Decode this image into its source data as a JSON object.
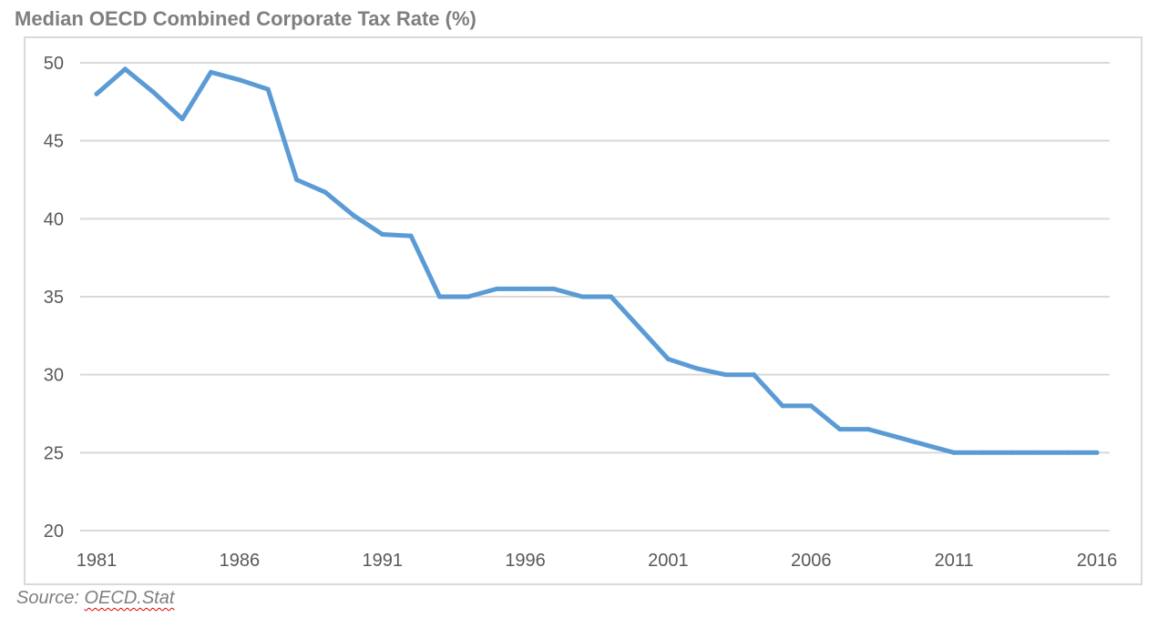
{
  "source": {
    "prefix": "Source: ",
    "name": "OECD.Stat"
  },
  "colors": {
    "line": "#5b9bd5",
    "grid": "#d9d9d9",
    "frame": "#d9d9d9",
    "title": "#7f7f7f",
    "tick": "#595959"
  },
  "chart_data": {
    "type": "line",
    "title": "Median OECD Combined Corporate Tax Rate (%)",
    "xlabel": "",
    "ylabel": "",
    "ylim": [
      20,
      50
    ],
    "yticks": [
      20,
      25,
      30,
      35,
      40,
      45,
      50
    ],
    "xlim": [
      1981,
      2016
    ],
    "xticks": [
      1981,
      1986,
      1991,
      1996,
      2001,
      2006,
      2011,
      2016
    ],
    "grid": "horizontal",
    "legend": "none",
    "series": [
      {
        "name": "Median OECD Combined Corporate Tax Rate (%)",
        "x": [
          1981,
          1982,
          1983,
          1984,
          1985,
          1986,
          1987,
          1988,
          1989,
          1990,
          1991,
          1992,
          1993,
          1994,
          1995,
          1996,
          1997,
          1998,
          1999,
          2000,
          2001,
          2002,
          2003,
          2004,
          2005,
          2006,
          2007,
          2008,
          2009,
          2010,
          2011,
          2012,
          2013,
          2014,
          2015,
          2016
        ],
        "values": [
          48.0,
          49.6,
          48.1,
          46.4,
          49.4,
          48.9,
          48.3,
          42.5,
          41.7,
          40.2,
          39.0,
          38.9,
          35.0,
          35.0,
          35.5,
          35.5,
          35.5,
          35.0,
          35.0,
          33.0,
          31.0,
          30.4,
          30.0,
          30.0,
          28.0,
          28.0,
          26.5,
          26.5,
          26.0,
          25.5,
          25.0,
          25.0,
          25.0,
          25.0,
          25.0,
          25.0
        ]
      }
    ]
  }
}
